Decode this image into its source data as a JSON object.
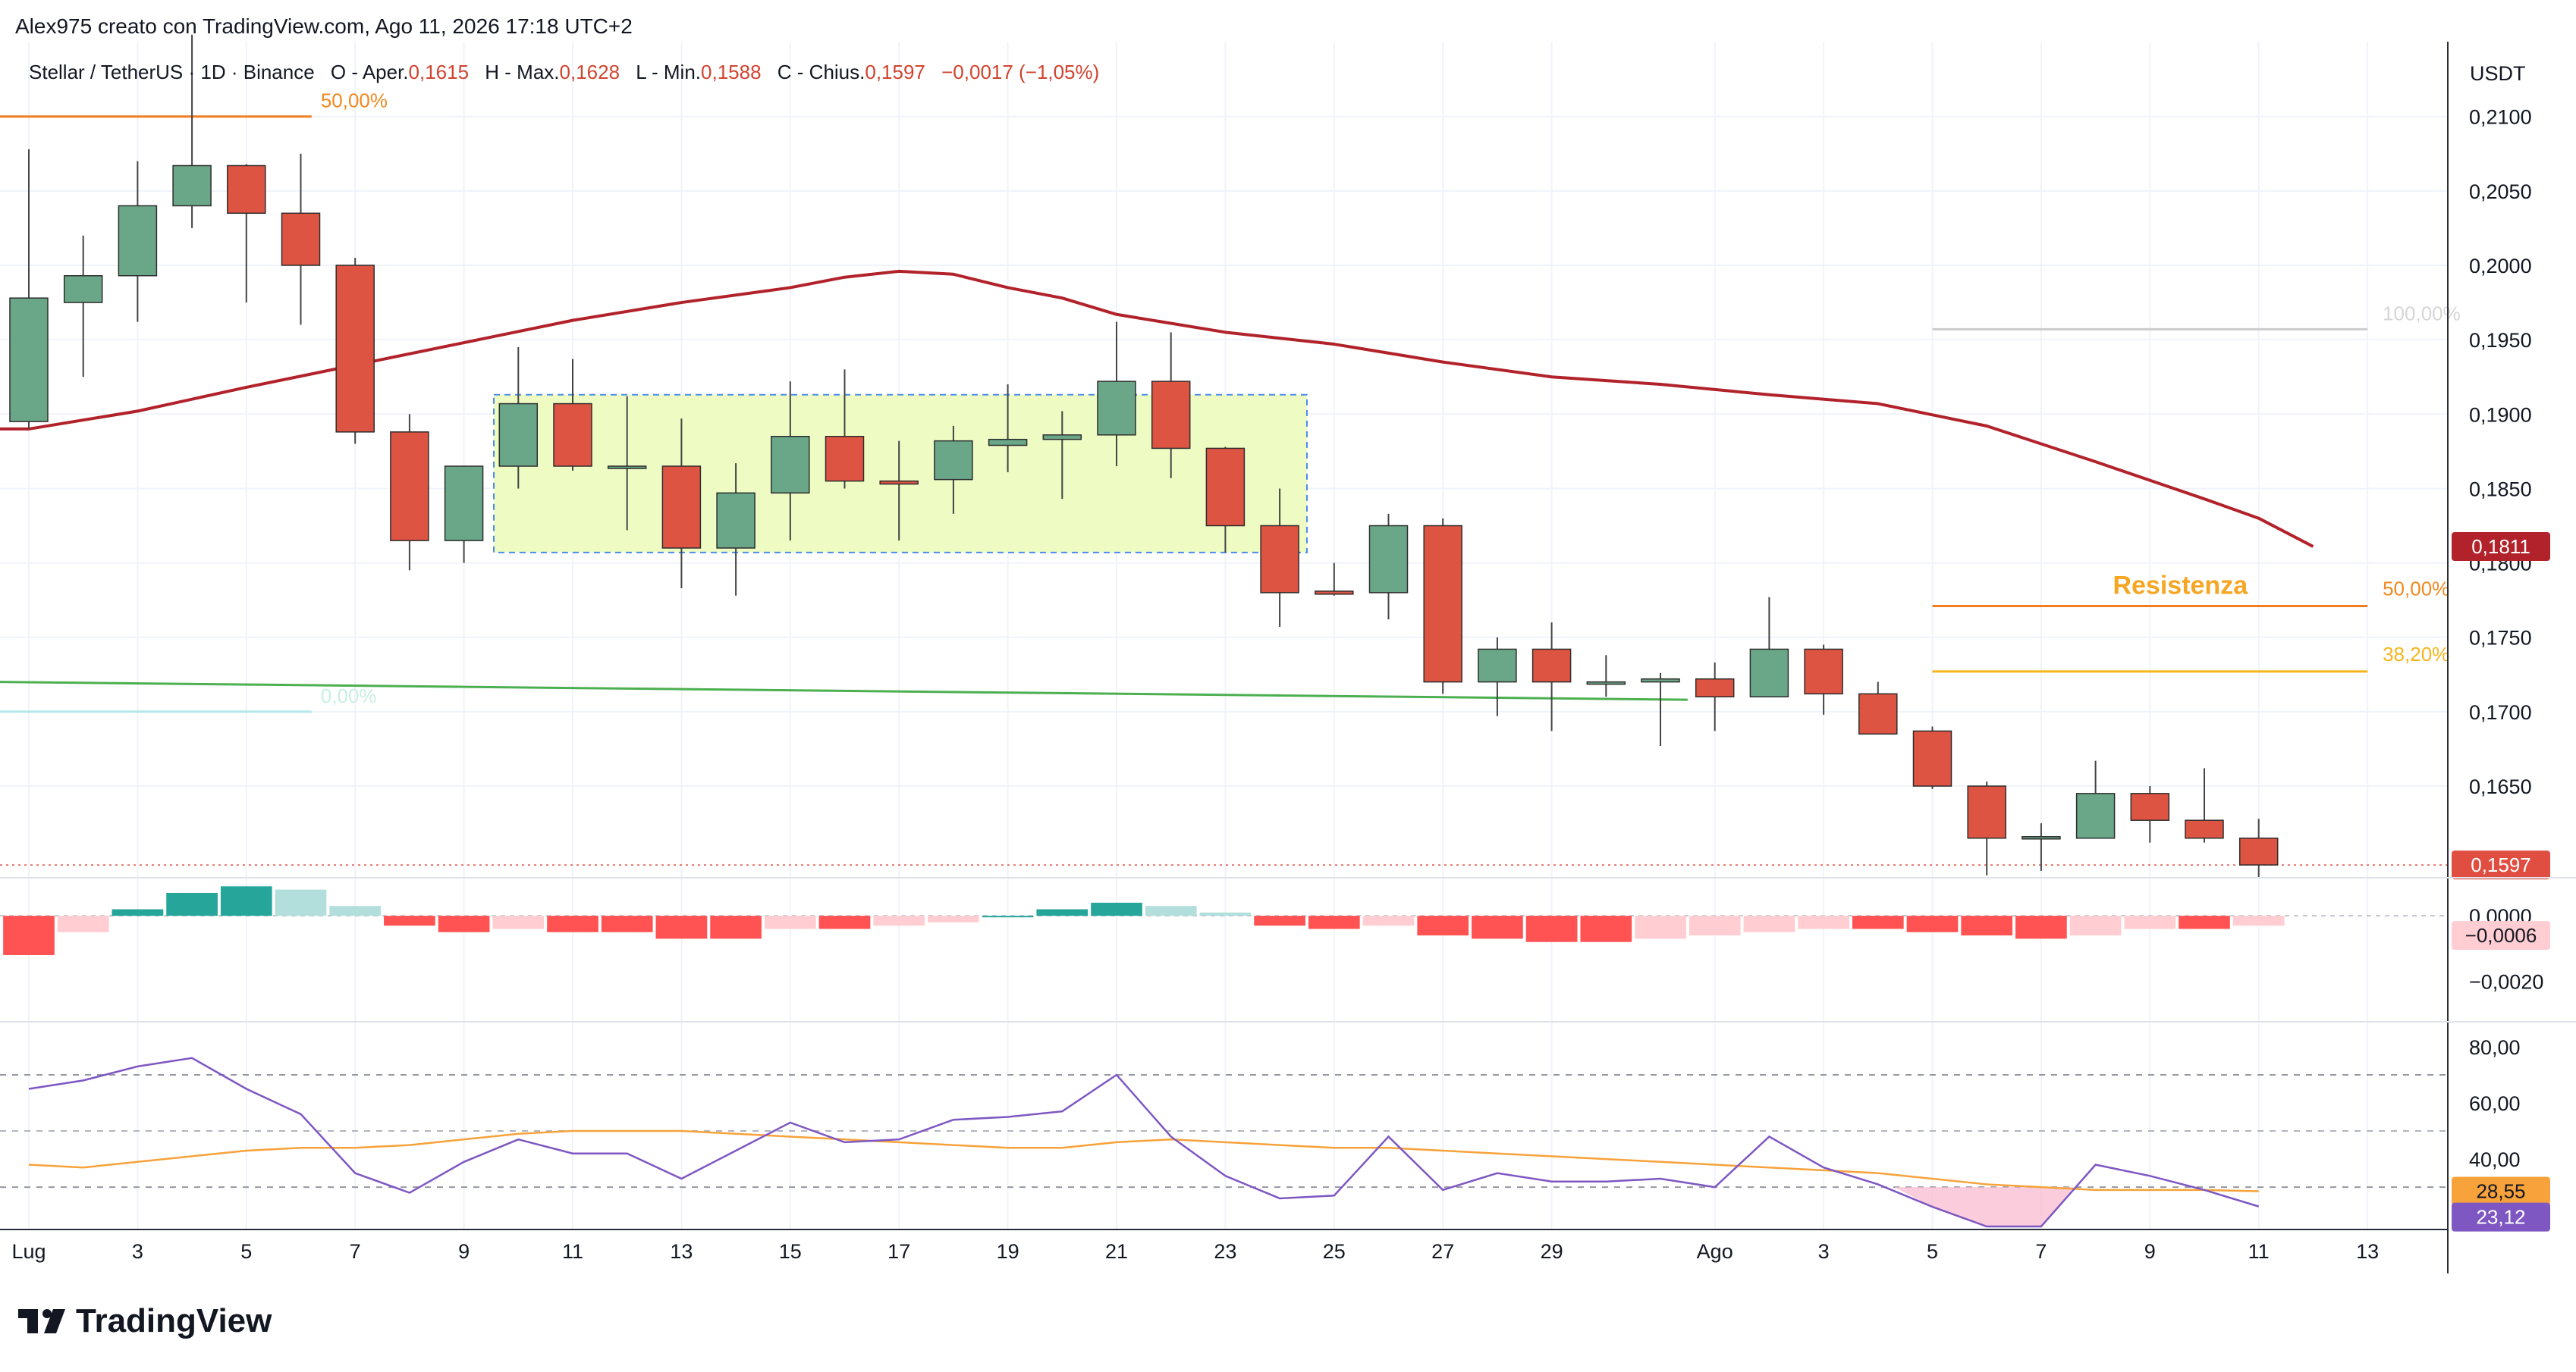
{
  "header": {
    "attribution": "Alex975 creato con TradingView.com, Ago 11, 2026 17:18 UTC+2",
    "symbol": "Stellar / TetherUS · 1D · Binance",
    "o_label": "O - Aper.",
    "o_val": "0,1615",
    "h_label": "H - Max.",
    "h_val": "0,1628",
    "l_label": "L - Min.",
    "l_val": "0,1588",
    "c_label": "C - Chius.",
    "c_val": "0,1597",
    "change": "−0,0017 (−1,05%)"
  },
  "footer": {
    "brand": "TradingView"
  },
  "axis": {
    "currency": "USDT",
    "price_ticks": [
      "0,2100",
      "0,2050",
      "0,2000",
      "0,1950",
      "0,1900",
      "0,1850",
      "0,1800",
      "0,1750",
      "0,1700",
      "0,1650"
    ],
    "macd_ticks": [
      "0,0000",
      "−0,0020"
    ],
    "rsi_ticks": [
      "80,00",
      "60,00",
      "40,00"
    ],
    "x_labels": [
      {
        "i": 0,
        "t": "Lug"
      },
      {
        "i": 2,
        "t": "3"
      },
      {
        "i": 4,
        "t": "5"
      },
      {
        "i": 6,
        "t": "7"
      },
      {
        "i": 8,
        "t": "9"
      },
      {
        "i": 10,
        "t": "11"
      },
      {
        "i": 12,
        "t": "13"
      },
      {
        "i": 14,
        "t": "15"
      },
      {
        "i": 16,
        "t": "17"
      },
      {
        "i": 18,
        "t": "19"
      },
      {
        "i": 20,
        "t": "21"
      },
      {
        "i": 22,
        "t": "23"
      },
      {
        "i": 24,
        "t": "25"
      },
      {
        "i": 26,
        "t": "27"
      },
      {
        "i": 28,
        "t": "29"
      },
      {
        "i": 31,
        "t": "Ago"
      },
      {
        "i": 33,
        "t": "3"
      },
      {
        "i": 35,
        "t": "5"
      },
      {
        "i": 37,
        "t": "7"
      },
      {
        "i": 39,
        "t": "9"
      },
      {
        "i": 41,
        "t": "11"
      },
      {
        "i": 43,
        "t": "13"
      }
    ]
  },
  "badges": {
    "ma": {
      "text": "0,1811",
      "value": 0.1811,
      "color": "#b2222a"
    },
    "price": {
      "text": "0,1597",
      "value": 0.1597,
      "color": "#e04e42"
    },
    "macd": {
      "text": "−0,0006",
      "value": -0.0006,
      "color": "#ffcdd2"
    },
    "rsi_ma": {
      "text": "28,55",
      "value": 28.55,
      "color": "#f7a23a"
    },
    "rsi": {
      "text": "23,12",
      "value": 23.12,
      "color": "#7e57c2"
    }
  },
  "annotations": {
    "resistance_label": "Resistenza",
    "fib_left_50": "50,00%",
    "fib_left_0": "0,00%",
    "fib_right_100": "100,00%",
    "fib_right_50": "50,00%",
    "fib_right_382": "38,20%"
  },
  "chart_data": {
    "type": "candlestick",
    "title": "Stellar / TetherUS · 1D · Binance",
    "x_start": "2026-07-01",
    "price_range": [
      0.1595,
      0.2135
    ],
    "candles": [
      {
        "o": 0.1895,
        "h": 0.2078,
        "l": 0.189,
        "c": 0.1978
      },
      {
        "o": 0.1975,
        "h": 0.202,
        "l": 0.1925,
        "c": 0.1993
      },
      {
        "o": 0.1993,
        "h": 0.207,
        "l": 0.1962,
        "c": 0.204
      },
      {
        "o": 0.204,
        "h": 0.2155,
        "l": 0.2025,
        "c": 0.2067
      },
      {
        "o": 0.2067,
        "h": 0.2068,
        "l": 0.1975,
        "c": 0.2035
      },
      {
        "o": 0.2035,
        "h": 0.2075,
        "l": 0.196,
        "c": 0.2
      },
      {
        "o": 0.2,
        "h": 0.2005,
        "l": 0.188,
        "c": 0.1888
      },
      {
        "o": 0.1888,
        "h": 0.19,
        "l": 0.1795,
        "c": 0.1815
      },
      {
        "o": 0.1815,
        "h": 0.1865,
        "l": 0.18,
        "c": 0.1865
      },
      {
        "o": 0.1865,
        "h": 0.1945,
        "l": 0.185,
        "c": 0.1907
      },
      {
        "o": 0.1907,
        "h": 0.1937,
        "l": 0.1862,
        "c": 0.1865
      },
      {
        "o": 0.1865,
        "h": 0.1912,
        "l": 0.1822,
        "c": 0.1865
      },
      {
        "o": 0.1865,
        "h": 0.1897,
        "l": 0.1783,
        "c": 0.181
      },
      {
        "o": 0.181,
        "h": 0.1867,
        "l": 0.1778,
        "c": 0.1847
      },
      {
        "o": 0.1847,
        "h": 0.1922,
        "l": 0.1815,
        "c": 0.1885
      },
      {
        "o": 0.1885,
        "h": 0.193,
        "l": 0.185,
        "c": 0.1855
      },
      {
        "o": 0.1855,
        "h": 0.1882,
        "l": 0.1815,
        "c": 0.1853
      },
      {
        "o": 0.1856,
        "h": 0.1892,
        "l": 0.1833,
        "c": 0.1882
      },
      {
        "o": 0.1879,
        "h": 0.192,
        "l": 0.1861,
        "c": 0.1883
      },
      {
        "o": 0.1883,
        "h": 0.1902,
        "l": 0.1843,
        "c": 0.1886
      },
      {
        "o": 0.1886,
        "h": 0.1962,
        "l": 0.1865,
        "c": 0.1922
      },
      {
        "o": 0.1922,
        "h": 0.1955,
        "l": 0.1857,
        "c": 0.1877
      },
      {
        "o": 0.1877,
        "h": 0.1878,
        "l": 0.1807,
        "c": 0.1825
      },
      {
        "o": 0.1825,
        "h": 0.185,
        "l": 0.1757,
        "c": 0.178
      },
      {
        "o": 0.1781,
        "h": 0.18,
        "l": 0.1778,
        "c": 0.1779
      },
      {
        "o": 0.178,
        "h": 0.1833,
        "l": 0.1762,
        "c": 0.1825
      },
      {
        "o": 0.1825,
        "h": 0.183,
        "l": 0.1712,
        "c": 0.172
      },
      {
        "o": 0.172,
        "h": 0.175,
        "l": 0.1697,
        "c": 0.1742
      },
      {
        "o": 0.1742,
        "h": 0.176,
        "l": 0.1687,
        "c": 0.172
      },
      {
        "o": 0.172,
        "h": 0.1738,
        "l": 0.171,
        "c": 0.172
      },
      {
        "o": 0.172,
        "h": 0.1726,
        "l": 0.1677,
        "c": 0.1722
      },
      {
        "o": 0.1722,
        "h": 0.1733,
        "l": 0.1687,
        "c": 0.171
      },
      {
        "o": 0.171,
        "h": 0.1777,
        "l": 0.171,
        "c": 0.1742
      },
      {
        "o": 0.1742,
        "h": 0.1745,
        "l": 0.1698,
        "c": 0.1712
      },
      {
        "o": 0.1712,
        "h": 0.172,
        "l": 0.1685,
        "c": 0.1685
      },
      {
        "o": 0.1687,
        "h": 0.169,
        "l": 0.1648,
        "c": 0.165
      },
      {
        "o": 0.165,
        "h": 0.1653,
        "l": 0.159,
        "c": 0.1615
      },
      {
        "o": 0.1615,
        "h": 0.1625,
        "l": 0.1593,
        "c": 0.1616
      },
      {
        "o": 0.1615,
        "h": 0.1667,
        "l": 0.1615,
        "c": 0.1645
      },
      {
        "o": 0.1645,
        "h": 0.165,
        "l": 0.1612,
        "c": 0.1627
      },
      {
        "o": 0.1627,
        "h": 0.1662,
        "l": 0.1612,
        "c": 0.1615
      },
      {
        "o": 0.1615,
        "h": 0.1628,
        "l": 0.1588,
        "c": 0.1597
      }
    ],
    "ma_line": [
      {
        "i": 0,
        "v": 0.189
      },
      {
        "i": 2,
        "v": 0.1902
      },
      {
        "i": 4,
        "v": 0.1918
      },
      {
        "i": 6,
        "v": 0.1933
      },
      {
        "i": 8,
        "v": 0.1948
      },
      {
        "i": 10,
        "v": 0.1963
      },
      {
        "i": 12,
        "v": 0.1975
      },
      {
        "i": 14,
        "v": 0.1985
      },
      {
        "i": 15,
        "v": 0.1992
      },
      {
        "i": 16,
        "v": 0.1996
      },
      {
        "i": 17,
        "v": 0.1994
      },
      {
        "i": 18,
        "v": 0.1985
      },
      {
        "i": 19,
        "v": 0.1978
      },
      {
        "i": 20,
        "v": 0.1967
      },
      {
        "i": 22,
        "v": 0.1955
      },
      {
        "i": 24,
        "v": 0.1947
      },
      {
        "i": 26,
        "v": 0.1935
      },
      {
        "i": 28,
        "v": 0.1925
      },
      {
        "i": 30,
        "v": 0.192
      },
      {
        "i": 32,
        "v": 0.1913
      },
      {
        "i": 34,
        "v": 0.1907
      },
      {
        "i": 36,
        "v": 0.1892
      },
      {
        "i": 38,
        "v": 0.1868
      },
      {
        "i": 40,
        "v": 0.1843
      },
      {
        "i": 41,
        "v": 0.183
      },
      {
        "i": 42,
        "v": 0.1811
      }
    ],
    "ma_green": {
      "from": 0.172,
      "to": 0.1708
    },
    "consolidation_box": {
      "i0": 8.55,
      "i1": 23.5,
      "top": 0.1913,
      "bottom": 0.1807
    },
    "fib_left": {
      "i0": 0,
      "i1": 5.2,
      "p50": 0.21,
      "p0": 0.17
    },
    "fib_right": {
      "i0": 35,
      "i1": 43,
      "p100": 0.1957,
      "p50": 0.1771,
      "p382": 0.1727
    },
    "current_price": 0.1597,
    "macd_hist": [
      -0.0012,
      -0.0005,
      0.0002,
      0.0007,
      0.0009,
      0.0008,
      0.0003,
      -0.0003,
      -0.0005,
      -0.0004,
      -0.0005,
      -0.0005,
      -0.0007,
      -0.0007,
      -0.0004,
      -0.0004,
      -0.0003,
      -0.0002,
      0.0,
      0.0002,
      0.0004,
      0.0003,
      0.0001,
      -0.0003,
      -0.0004,
      -0.0003,
      -0.0006,
      -0.0007,
      -0.0008,
      -0.0008,
      -0.0007,
      -0.0006,
      -0.0005,
      -0.0004,
      -0.0004,
      -0.0005,
      -0.0006,
      -0.0007,
      -0.0006,
      -0.0004,
      -0.0004,
      -0.0003
    ],
    "macd_range": [
      -0.0031,
      0.001
    ],
    "rsi": [
      65,
      68,
      73,
      76,
      65,
      56,
      35,
      28,
      39,
      47,
      42,
      42,
      33,
      43,
      53,
      46,
      47,
      54,
      55,
      57,
      70,
      48,
      34,
      26,
      27,
      48,
      29,
      35,
      32,
      32,
      33,
      30,
      48,
      37,
      31,
      23,
      16,
      16,
      38,
      34,
      29,
      23.12
    ],
    "rsi_ma": [
      38,
      37,
      39,
      41,
      43,
      44,
      44,
      45,
      47,
      49,
      50,
      50,
      50,
      49,
      48,
      47,
      46,
      45,
      44,
      44,
      46,
      47,
      46,
      45,
      44,
      44,
      43,
      42,
      41,
      40,
      39,
      38,
      37,
      36,
      35,
      33,
      31,
      30,
      29,
      29,
      29,
      28.55
    ],
    "rsi_range": [
      16,
      87
    ],
    "rsi_levels": [
      70,
      50,
      30
    ]
  }
}
